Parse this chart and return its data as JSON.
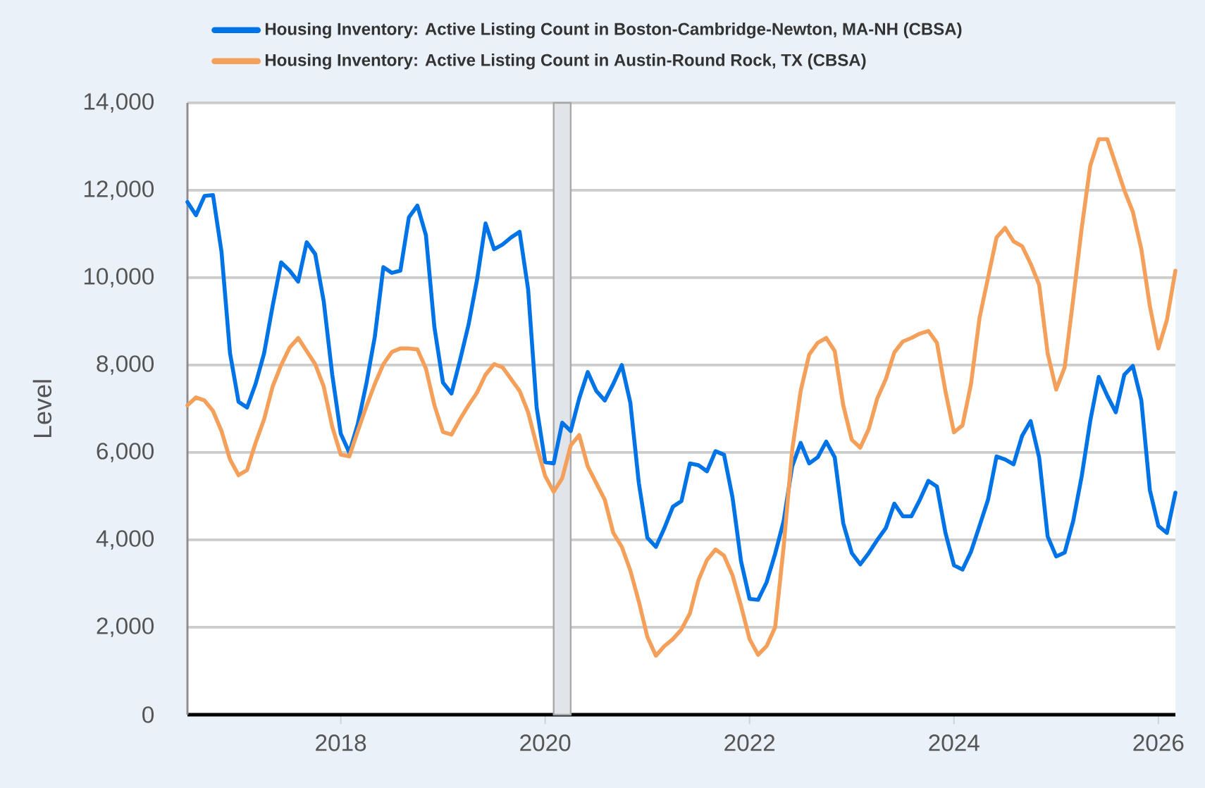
{
  "chart_data": {
    "type": "line",
    "x": [
      "2016-07",
      "2016-08",
      "2016-09",
      "2016-10",
      "2016-11",
      "2016-12",
      "2017-01",
      "2017-02",
      "2017-03",
      "2017-04",
      "2017-05",
      "2017-06",
      "2017-07",
      "2017-08",
      "2017-09",
      "2017-10",
      "2017-11",
      "2017-12",
      "2018-01",
      "2018-02",
      "2018-03",
      "2018-04",
      "2018-05",
      "2018-06",
      "2018-07",
      "2018-08",
      "2018-09",
      "2018-10",
      "2018-11",
      "2018-12",
      "2019-01",
      "2019-02",
      "2019-03",
      "2019-04",
      "2019-05",
      "2019-06",
      "2019-07",
      "2019-08",
      "2019-09",
      "2019-10",
      "2019-11",
      "2019-12",
      "2020-01",
      "2020-02",
      "2020-03",
      "2020-04",
      "2020-05",
      "2020-06",
      "2020-07",
      "2020-08",
      "2020-09",
      "2020-10",
      "2020-11",
      "2020-12",
      "2021-01",
      "2021-02",
      "2021-03",
      "2021-04",
      "2021-05",
      "2021-06",
      "2021-07",
      "2021-08",
      "2021-09",
      "2021-10",
      "2021-11",
      "2021-12",
      "2022-01",
      "2022-02",
      "2022-03",
      "2022-04",
      "2022-05",
      "2022-06",
      "2022-07",
      "2022-08",
      "2022-09",
      "2022-10",
      "2022-11",
      "2022-12",
      "2023-01",
      "2023-02",
      "2023-03",
      "2023-04",
      "2023-05",
      "2023-06",
      "2023-07",
      "2023-08",
      "2023-09",
      "2023-10",
      "2023-11",
      "2023-12",
      "2024-01",
      "2024-02",
      "2024-03",
      "2024-04",
      "2024-05",
      "2024-06",
      "2024-07",
      "2024-08",
      "2024-09",
      "2024-10",
      "2024-11",
      "2024-12",
      "2025-01",
      "2025-02",
      "2025-03",
      "2025-04",
      "2025-05",
      "2025-06",
      "2025-07",
      "2025-08",
      "2025-09",
      "2025-10",
      "2025-11",
      "2025-12",
      "2026-01",
      "2026-02",
      "2026-03"
    ],
    "series": [
      {
        "name": "Housing Inventory: Active Listing Count in Boston-Cambridge-Newton, MA-NH (CBSA)",
        "color": "#0073e6",
        "values": [
          11730,
          11430,
          11870,
          11890,
          10590,
          8270,
          7160,
          7030,
          7570,
          8270,
          9350,
          10350,
          10160,
          9910,
          10810,
          10540,
          9460,
          7780,
          6430,
          6000,
          6650,
          7570,
          8650,
          10240,
          10110,
          10160,
          11380,
          11650,
          10970,
          8860,
          7600,
          7350,
          8110,
          8920,
          9950,
          11240,
          10650,
          10760,
          10920,
          11050,
          9730,
          7030,
          5780,
          5750,
          6680,
          6490,
          7240,
          7840,
          7410,
          7190,
          7570,
          8000,
          7140,
          5300,
          4050,
          3840,
          4270,
          4760,
          4890,
          5750,
          5710,
          5570,
          6030,
          5950,
          4970,
          3510,
          2650,
          2630,
          3030,
          3680,
          4430,
          5680,
          6220,
          5750,
          5890,
          6250,
          5890,
          4380,
          3700,
          3440,
          3700,
          4000,
          4270,
          4830,
          4540,
          4540,
          4920,
          5350,
          5220,
          4160,
          3420,
          3320,
          3730,
          4320,
          4920,
          5910,
          5840,
          5730,
          6380,
          6720,
          5890,
          4080,
          3620,
          3710,
          4430,
          5460,
          6720,
          7730,
          7300,
          6920,
          7780,
          7980,
          7190,
          5140,
          4320,
          4160,
          5080
        ]
      },
      {
        "name": "Housing Inventory: Active Listing Count in Austin-Round Rock, TX (CBSA)",
        "color": "#f5a05a",
        "values": [
          7080,
          7260,
          7190,
          6950,
          6490,
          5840,
          5480,
          5600,
          6220,
          6760,
          7510,
          8000,
          8400,
          8620,
          8320,
          8020,
          7510,
          6590,
          5950,
          5910,
          6490,
          7050,
          7570,
          8020,
          8300,
          8380,
          8380,
          8360,
          7920,
          7080,
          6470,
          6410,
          6760,
          7080,
          7370,
          7780,
          8020,
          7950,
          7680,
          7410,
          6920,
          6160,
          5460,
          5100,
          5410,
          6160,
          6400,
          5680,
          5300,
          4920,
          4160,
          3840,
          3300,
          2590,
          1780,
          1350,
          1570,
          1730,
          1950,
          2320,
          3080,
          3540,
          3780,
          3640,
          3190,
          2490,
          1730,
          1370,
          1570,
          2000,
          3840,
          6050,
          7410,
          8240,
          8510,
          8620,
          8320,
          7080,
          6290,
          6110,
          6540,
          7240,
          7680,
          8290,
          8540,
          8620,
          8720,
          8780,
          8510,
          7400,
          6460,
          6620,
          7570,
          9080,
          10000,
          10920,
          11140,
          10830,
          10720,
          10320,
          9840,
          8270,
          7440,
          7950,
          9510,
          11140,
          12560,
          13170,
          13170,
          12590,
          12000,
          11510,
          10650,
          9350,
          8380,
          9030,
          10160
        ]
      }
    ],
    "ylabel": "Level",
    "xlim": [
      "2016-07",
      "2026-03"
    ],
    "xticks": [
      "2018",
      "2020",
      "2022",
      "2024",
      "2026"
    ],
    "ylim": [
      0,
      14000
    ],
    "yticks": [
      0,
      {
        "value": 2000,
        "label": "2,000"
      },
      {
        "value": 4000,
        "label": "4,000"
      },
      {
        "value": 6000,
        "label": "6,000"
      },
      {
        "value": 8000,
        "label": "8,000"
      },
      {
        "value": 10000,
        "label": "10,000"
      },
      {
        "value": 12000,
        "label": "12,000"
      },
      {
        "value": 14000,
        "label": "14,000"
      }
    ],
    "bands": [
      {
        "axis": "x",
        "from": "2020-02",
        "to": "2020-04",
        "color": "#e1e5ea"
      }
    ],
    "grid": "y",
    "legend": "top left"
  }
}
